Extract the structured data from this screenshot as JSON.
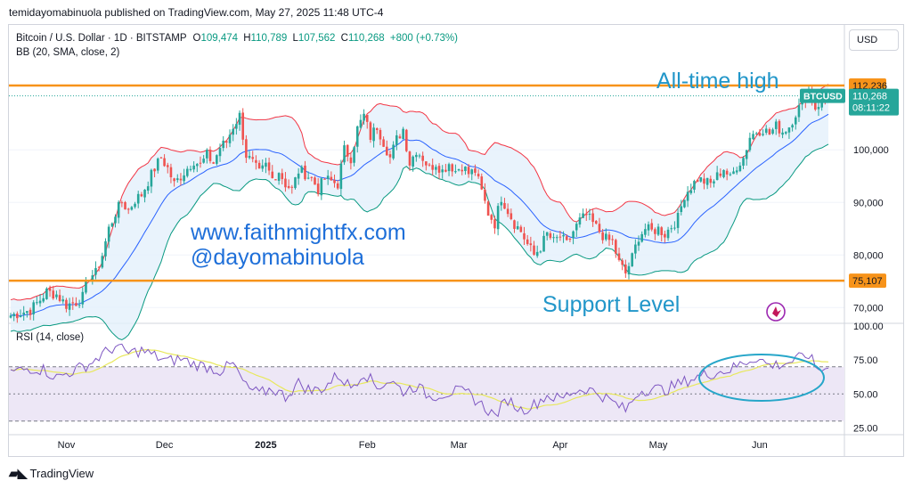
{
  "caption": "temidayomabinuola published on TradingView.com, May 27, 2025 11:48 UTC-4",
  "footer": {
    "brand": "TradingView",
    "logo_icon": "tradingview-logo-icon"
  },
  "currency_button": "USD",
  "legend": {
    "symbol": "Bitcoin / U.S. Dollar · 1D · BITSTAMP",
    "o_label": "O",
    "o_value": "109,474",
    "h_label": "H",
    "h_value": "110,789",
    "l_label": "L",
    "l_value": "107,562",
    "c_label": "C",
    "c_value": "110,268",
    "change": "+800 (+0.73%)",
    "bb": "BB (20, SMA, close, 2)",
    "rsi": "RSI (14, close)"
  },
  "annotations": {
    "ath": "All-time high",
    "support": "Support Level",
    "website": "www.faithmightfx.com",
    "handle": "@dayomabinuola"
  },
  "colors": {
    "up": "#26a69a",
    "down": "#ef5350",
    "orange": "#f7931a",
    "basis": "#2962ff",
    "upper": "#f23645",
    "lower": "#089981",
    "band_fill": "#e3f0fb",
    "rsi_line": "#7e57c2",
    "rsi_ma": "#e8e85c",
    "rsi_fill": "#ede7f6",
    "ann_blue": "#2196c9",
    "circle": "#26a6c9"
  },
  "chart_data": [
    {
      "type": "candlestick",
      "title": "Bitcoin / U.S. Dollar · 1D · BITSTAMP",
      "y_scale_range": [
        67000,
        118000
      ],
      "y_ticks": [
        70000,
        80000,
        90000,
        100000
      ],
      "y_tick_labels": [
        "70,000",
        "80,000",
        "90,000",
        "100,000"
      ],
      "x_ticks": [
        "Nov",
        "Dec",
        "2025",
        "Feb",
        "Mar",
        "Apr",
        "May",
        "Jun"
      ],
      "price_labels": [
        {
          "label": "112,236",
          "value": 112236,
          "kind": "orange"
        },
        {
          "label": "75,107",
          "value": 75107,
          "kind": "orange"
        },
        {
          "label": "110,268",
          "value": 110268,
          "kind": "last",
          "symbol": "BTCUSD",
          "countdown": "08:11:22"
        }
      ],
      "horizontal_lines": [
        {
          "name": "all-time-high",
          "value": 112236
        },
        {
          "name": "support",
          "value": 75107
        }
      ],
      "close_path": [
        [
          0,
          68500
        ],
        [
          3,
          69000
        ],
        [
          6,
          69500
        ],
        [
          9,
          71500
        ],
        [
          11,
          73000
        ],
        [
          14,
          72500
        ],
        [
          17,
          70500
        ],
        [
          20,
          71000
        ],
        [
          22,
          72000
        ],
        [
          24,
          76000
        ],
        [
          26,
          76500
        ],
        [
          28,
          80000
        ],
        [
          30,
          85000
        ],
        [
          32,
          88000
        ],
        [
          34,
          90000
        ],
        [
          36,
          88500
        ],
        [
          38,
          90500
        ],
        [
          40,
          91500
        ],
        [
          42,
          94000
        ],
        [
          44,
          96500
        ],
        [
          46,
          98500
        ],
        [
          48,
          96500
        ],
        [
          50,
          93500
        ],
        [
          52,
          95000
        ],
        [
          54,
          96500
        ],
        [
          56,
          98000
        ],
        [
          58,
          97000
        ],
        [
          60,
          99000
        ],
        [
          62,
          97500
        ],
        [
          64,
          100500
        ],
        [
          66,
          101500
        ],
        [
          68,
          104500
        ],
        [
          70,
          106500
        ],
        [
          72,
          99000
        ],
        [
          74,
          97500
        ],
        [
          76,
          95500
        ],
        [
          78,
          97000
        ],
        [
          80,
          94500
        ],
        [
          82,
          96000
        ],
        [
          84,
          93500
        ],
        [
          86,
          92500
        ],
        [
          88,
          96000
        ],
        [
          90,
          95500
        ],
        [
          92,
          94500
        ],
        [
          94,
          92500
        ],
        [
          96,
          94500
        ],
        [
          98,
          94000
        ],
        [
          100,
          93500
        ],
        [
          102,
          100000
        ],
        [
          104,
          98500
        ],
        [
          106,
          104000
        ],
        [
          108,
          106500
        ],
        [
          110,
          102500
        ],
        [
          112,
          104500
        ],
        [
          114,
          101500
        ],
        [
          116,
          98500
        ],
        [
          118,
          102000
        ],
        [
          120,
          104000
        ],
        [
          122,
          97500
        ],
        [
          124,
          100000
        ],
        [
          126,
          98500
        ],
        [
          128,
          96500
        ],
        [
          130,
          97500
        ],
        [
          132,
          96000
        ],
        [
          134,
          97500
        ],
        [
          136,
          96000
        ],
        [
          138,
          97000
        ],
        [
          140,
          95500
        ],
        [
          142,
          96000
        ],
        [
          144,
          92000
        ],
        [
          146,
          88000
        ],
        [
          148,
          86000
        ],
        [
          150,
          91000
        ],
        [
          152,
          88500
        ],
        [
          154,
          86000
        ],
        [
          156,
          84500
        ],
        [
          158,
          82000
        ],
        [
          160,
          80000
        ],
        [
          162,
          81500
        ],
        [
          164,
          84000
        ],
        [
          166,
          82500
        ],
        [
          168,
          83500
        ],
        [
          170,
          82000
        ],
        [
          172,
          84500
        ],
        [
          174,
          86500
        ],
        [
          176,
          87500
        ],
        [
          178,
          86000
        ],
        [
          180,
          84500
        ],
        [
          182,
          83000
        ],
        [
          184,
          82500
        ],
        [
          186,
          78500
        ],
        [
          188,
          76500
        ],
        [
          190,
          79500
        ],
        [
          192,
          83500
        ],
        [
          194,
          85000
        ],
        [
          196,
          84500
        ],
        [
          198,
          85000
        ],
        [
          200,
          84000
        ],
        [
          202,
          85500
        ],
        [
          204,
          87000
        ],
        [
          206,
          91500
        ],
        [
          208,
          93000
        ],
        [
          210,
          94500
        ],
        [
          212,
          94000
        ],
        [
          214,
          93500
        ],
        [
          216,
          95000
        ],
        [
          218,
          96500
        ],
        [
          220,
          94500
        ],
        [
          222,
          97000
        ],
        [
          224,
          98500
        ],
        [
          226,
          102500
        ],
        [
          228,
          103500
        ],
        [
          230,
          104000
        ],
        [
          232,
          103000
        ],
        [
          234,
          104500
        ],
        [
          236,
          103500
        ],
        [
          238,
          104500
        ],
        [
          240,
          107000
        ],
        [
          242,
          109000
        ],
        [
          244,
          111500
        ],
        [
          246,
          108000
        ],
        [
          248,
          109500
        ],
        [
          250,
          110268
        ]
      ],
      "bollinger_bands": {
        "period": 20,
        "stddev": 2,
        "source": "close"
      }
    },
    {
      "type": "line",
      "title": "RSI (14, close)",
      "ylim": [
        20,
        102
      ],
      "y_ticks": [
        25,
        50,
        75,
        100
      ],
      "y_tick_labels": [
        "25.00",
        "50.00",
        "75.00",
        "100.00"
      ],
      "bands": [
        30,
        50,
        70
      ],
      "series": [
        {
          "name": "RSI",
          "values_path": [
            [
              0,
              66
            ],
            [
              6,
              69
            ],
            [
              10,
              68
            ],
            [
              14,
              62
            ],
            [
              18,
              66
            ],
            [
              24,
              72
            ],
            [
              28,
              79
            ],
            [
              32,
              85
            ],
            [
              36,
              80
            ],
            [
              40,
              82
            ],
            [
              44,
              78
            ],
            [
              48,
              74
            ],
            [
              52,
              76
            ],
            [
              56,
              72
            ],
            [
              60,
              70
            ],
            [
              64,
              67
            ],
            [
              68,
              72
            ],
            [
              72,
              55
            ],
            [
              76,
              50
            ],
            [
              80,
              54
            ],
            [
              84,
              48
            ],
            [
              88,
              58
            ],
            [
              92,
              52
            ],
            [
              96,
              55
            ],
            [
              100,
              64
            ],
            [
              104,
              55
            ],
            [
              108,
              66
            ],
            [
              112,
              55
            ],
            [
              116,
              60
            ],
            [
              120,
              52
            ],
            [
              124,
              56
            ],
            [
              128,
              48
            ],
            [
              132,
              50
            ],
            [
              136,
              52
            ],
            [
              140,
              50
            ],
            [
              144,
              42
            ],
            [
              148,
              34
            ],
            [
              152,
              46
            ],
            [
              156,
              38
            ],
            [
              160,
              42
            ],
            [
              164,
              49
            ],
            [
              168,
              46
            ],
            [
              172,
              52
            ],
            [
              176,
              54
            ],
            [
              180,
              50
            ],
            [
              184,
              44
            ],
            [
              188,
              38
            ],
            [
              192,
              52
            ],
            [
              196,
              54
            ],
            [
              200,
              53
            ],
            [
              204,
              57
            ],
            [
              208,
              61
            ],
            [
              212,
              64
            ],
            [
              216,
              66
            ],
            [
              220,
              68
            ],
            [
              224,
              73
            ],
            [
              228,
              77
            ],
            [
              232,
              71
            ],
            [
              236,
              72
            ],
            [
              240,
              75
            ],
            [
              244,
              79
            ],
            [
              246,
              70
            ],
            [
              248,
              68
            ],
            [
              250,
              69
            ]
          ]
        }
      ]
    }
  ]
}
